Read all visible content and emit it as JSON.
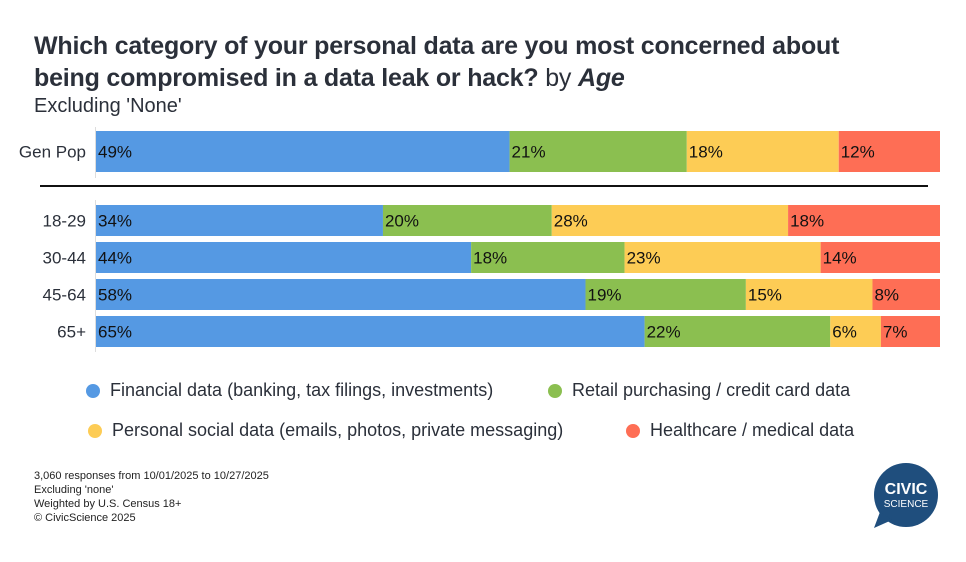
{
  "title": {
    "line1": "Which category of your personal data are you most concerned about",
    "line2": "being compromised in a data leak or hack?",
    "by": "by",
    "dimension": "Age",
    "subtitle": "Excluding 'None'"
  },
  "chart_data": {
    "type": "bar",
    "orientation": "horizontal",
    "stacked": true,
    "normalized_percent": true,
    "categories": [
      "Gen Pop",
      "18-29",
      "30-44",
      "45-64",
      "65+"
    ],
    "series": [
      {
        "name": "Financial data (banking, tax filings, investments)",
        "color": "#5599e3",
        "values": [
          49,
          34,
          44,
          58,
          65
        ]
      },
      {
        "name": "Retail purchasing / credit card data",
        "color": "#8bbf50",
        "values": [
          21,
          20,
          18,
          19,
          22
        ]
      },
      {
        "name": "Personal social data (emails, photos, private messaging)",
        "color": "#fdcc55",
        "values": [
          18,
          28,
          23,
          15,
          6
        ]
      },
      {
        "name": "Healthcare / medical data",
        "color": "#fe6e55",
        "values": [
          12,
          18,
          14,
          8,
          7
        ]
      }
    ],
    "value_suffix": "%",
    "legend_position": "bottom",
    "grid": false
  },
  "footnote": [
    "3,060 responses from 10/01/2025 to 10/27/2025",
    "Excluding 'none'",
    "Weighted by U.S. Census 18+",
    "© CivicScience 2025"
  ],
  "logo": {
    "line1": "CIVIC",
    "line2": "SCIENCE",
    "color": "#1f4e7d"
  }
}
